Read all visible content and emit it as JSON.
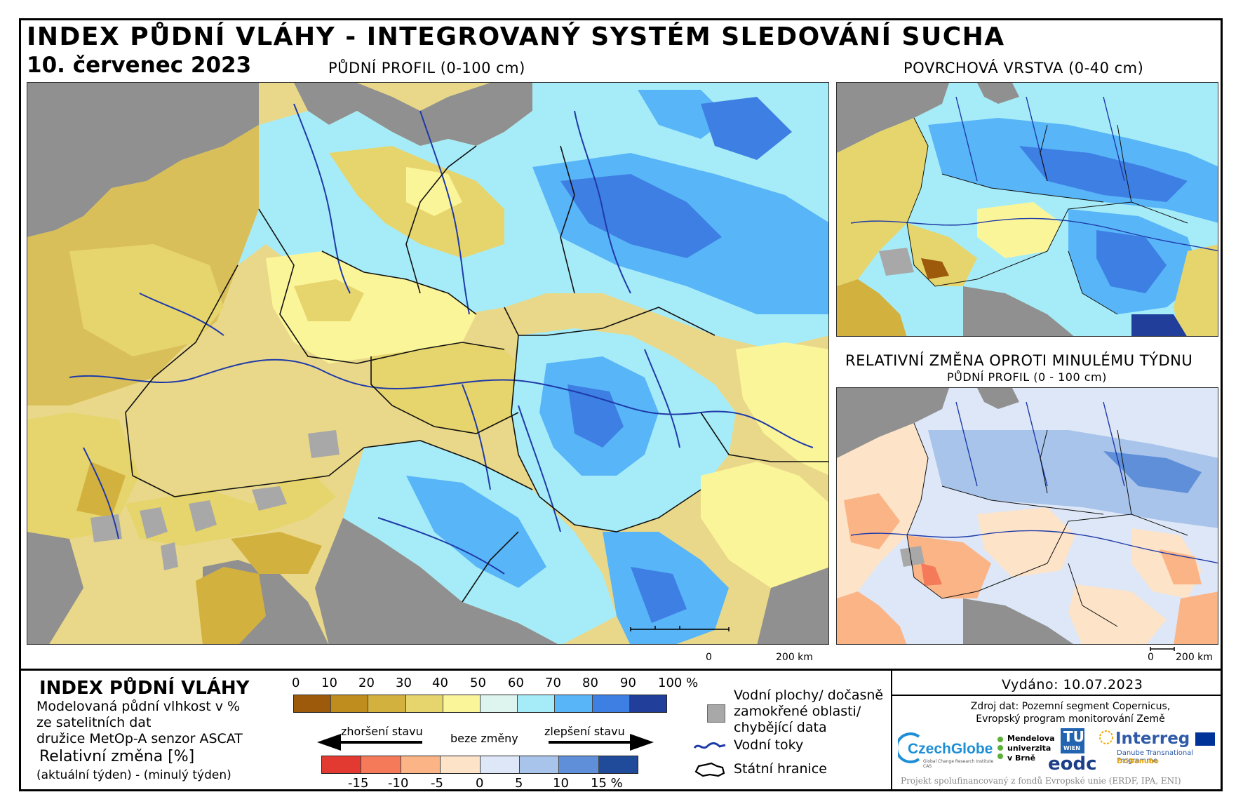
{
  "header": {
    "title": "INDEX PŮDNÍ VLÁHY - INTEGROVANÝ SYSTÉM SLEDOVÁNÍ SUCHA",
    "date": "10. červenec 2023"
  },
  "maps": {
    "main_label": "PŮDNÍ PROFIL (0-100 cm)",
    "surface_label": "POVRCHOVÁ VRSTVA (0-40 cm)",
    "change_label": "RELATIVNÍ ZMĚNA OPROTI MINULÉMU TÝDNU",
    "change_sublabel": "PŮDNÍ PROFIL (0 - 100 cm)",
    "scale_zero": "0",
    "scale_main": "200 km",
    "scale_small": "200 km"
  },
  "legend": {
    "title": "INDEX PŮDNÍ VLÁHY",
    "desc_line1": "Modelovaná půdní vlhkost v %",
    "desc_line2": "ze satelitních dat",
    "desc_line3": "družice MetOp-A senzor ASCAT",
    "change_title": "Relativní změna [%]",
    "change_desc": "(aktuální týden) - (minulý týden)",
    "index_ticks": [
      "0",
      "10",
      "20",
      "30",
      "40",
      "50",
      "60",
      "70",
      "80",
      "90",
      "100 %"
    ],
    "index_colors": [
      "#9c5a0a",
      "#bf8c1e",
      "#d3b13e",
      "#e6d56c",
      "#fbf59a",
      "#ddf5ee",
      "#a6ecf8",
      "#58b5f8",
      "#3e7fe3",
      "#203e9a"
    ],
    "change_ticks": [
      "-15",
      "-10",
      "-5",
      "0",
      "5",
      "10",
      "15 %"
    ],
    "change_colors": [
      "#e23a30",
      "#f47a5a",
      "#fbb486",
      "#fde3c8",
      "#dde7f7",
      "#a8c4ea",
      "#5f8fd8",
      "#1f4b9a"
    ],
    "worse_label": "zhoršení stavu",
    "nochange_label": "beze změny",
    "better_label": "zlepšení stavu",
    "water_areas_line1": "Vodní plochy/ dočasně",
    "water_areas_line2": "zamokřené oblasti/",
    "water_areas_line3": "chybějící data",
    "rivers_label": "Vodní toky",
    "borders_label": "Státní hranice",
    "missing_color": "#a8a8a8",
    "river_color": "#1f3aa8"
  },
  "info": {
    "issued": "Vydáno: 10.07.2023",
    "source_line1": "Zdroj dat: Pozemní segment Copernicus,",
    "source_line2": "Evropský program monitorování Země",
    "funding": "Projekt spolufinancovaný z fondů Evropské unie (ERDF, IPA, ENI)"
  },
  "logos": {
    "czechglobe": "CzechGlobe",
    "czechglobe_sub": "Global Change Research Institute CAS",
    "mendel_line1": "Mendelova",
    "mendel_line2": "univerzita",
    "mendel_line3": "v Brně",
    "tuwien": "TU",
    "tuwien_sub": "WIEN",
    "eodc": "eodc",
    "interreg": "Interreg",
    "interreg_sub1": "Danube Transnational Programme",
    "interreg_sub2": "DriDanube"
  }
}
